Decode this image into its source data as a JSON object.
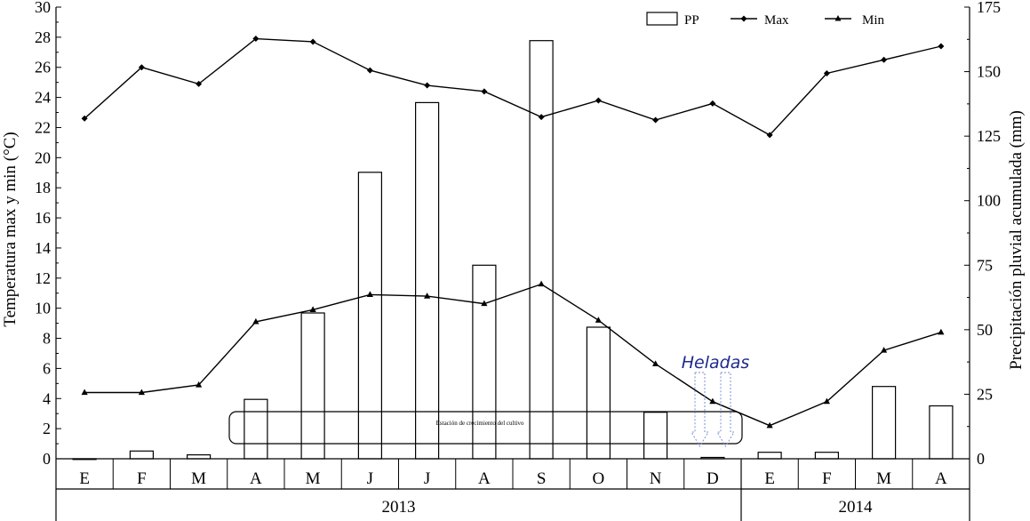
{
  "chart_data": {
    "type": "bar",
    "categories": [
      "E",
      "F",
      "M",
      "A",
      "M",
      "J",
      "J",
      "A",
      "S",
      "O",
      "N",
      "D",
      "E",
      "F",
      "M",
      "A"
    ],
    "year_groups": [
      {
        "label": "2013",
        "start": 0,
        "end": 11
      },
      {
        "label": "2014",
        "start": 12,
        "end": 15
      }
    ],
    "ylabel_left": "Temperatura max y min (°C)",
    "ylabel_right": "Precipitación pluvial acumulada (mm)",
    "ylim_left": [
      0,
      30
    ],
    "ylim_right": [
      0,
      175
    ],
    "yticks_left": [
      "0",
      "2",
      "4",
      "6",
      "8",
      "10",
      "12",
      "14",
      "16",
      "18",
      "20",
      "22",
      "24",
      "26",
      "28",
      "30"
    ],
    "yticks_right": [
      "0",
      "25",
      "50",
      "75",
      "100",
      "125",
      "150",
      "175"
    ],
    "series": [
      {
        "name": "PP",
        "kind": "bar",
        "axis": "right",
        "values": [
          0,
          3,
          1.5,
          23,
          56.5,
          111,
          138,
          75,
          162,
          51,
          18,
          0.5,
          2.5,
          2.5,
          28,
          20.5
        ]
      },
      {
        "name": "Max",
        "kind": "line",
        "marker": "diamond",
        "axis": "left",
        "values": [
          22.6,
          26.0,
          24.9,
          27.9,
          27.7,
          25.8,
          24.8,
          24.4,
          22.7,
          23.8,
          22.5,
          23.6,
          21.5,
          25.6,
          26.5,
          27.4
        ]
      },
      {
        "name": "Min",
        "kind": "line",
        "marker": "triangle",
        "axis": "left",
        "values": [
          4.4,
          4.4,
          4.9,
          9.1,
          9.9,
          10.9,
          10.8,
          10.3,
          11.6,
          9.2,
          6.3,
          3.8,
          2.2,
          3.8,
          7.2,
          8.4
        ]
      }
    ],
    "legend_position": "top-right",
    "grid": false,
    "annotations": {
      "season_box_text": "Estación de crecimiento del cultivo",
      "frost_label": "Heladas",
      "frost_color": "#1f2a8c",
      "frost_arrow_color": "#7b8fd6"
    }
  }
}
